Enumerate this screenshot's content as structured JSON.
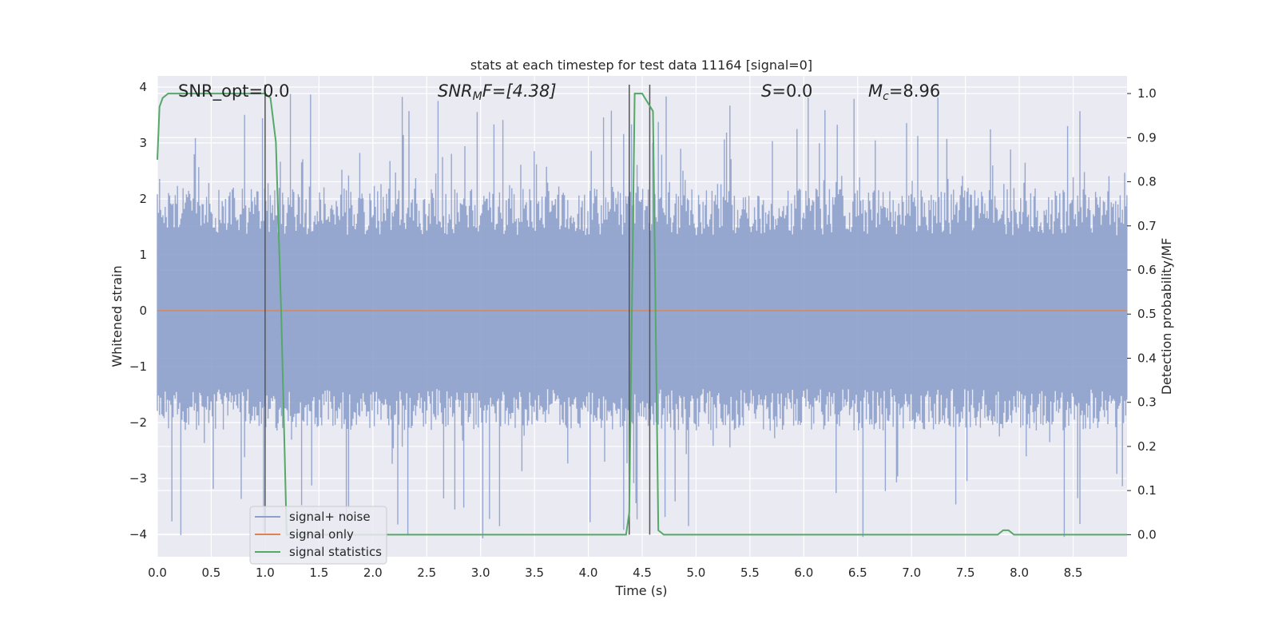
{
  "chart_data": {
    "type": "line",
    "title": "stats at each timestep for test data 11164 [signal=0]",
    "xlabel": "Time (s)",
    "ylabel": "Whitened strain",
    "y2label": "Detection probability/MF",
    "xlim": [
      0.0,
      9.0
    ],
    "ylim": [
      -4.4,
      4.2
    ],
    "y2lim": [
      -0.05,
      1.04
    ],
    "x_ticks": [
      "0.0",
      "0.5",
      "1.0",
      "1.5",
      "2.0",
      "2.5",
      "3.0",
      "3.5",
      "4.0",
      "4.5",
      "5.0",
      "5.5",
      "6.0",
      "6.5",
      "7.0",
      "7.5",
      "8.0",
      "8.5"
    ],
    "y_ticks": [
      "−4",
      "−3",
      "−2",
      "−1",
      "0",
      "1",
      "2",
      "3",
      "4"
    ],
    "y2_ticks": [
      "0.0",
      "0.1",
      "0.2",
      "0.3",
      "0.4",
      "0.5",
      "0.6",
      "0.7",
      "0.8",
      "0.9",
      "1.0"
    ],
    "grid": true,
    "annotations": {
      "snr_opt": "SNR_opt=0.0",
      "snr_mf_pre": "SNR",
      "snr_mf_sub": "M",
      "snr_mf_post": "F=[4.38]",
      "s_var": "S",
      "s_post": "=0.0",
      "mc_var": "M",
      "mc_sub": "c",
      "mc_post": "=8.96"
    },
    "legend": {
      "position": "lower-left",
      "entries": [
        "signal+ noise",
        "signal only",
        "signal statistics"
      ]
    },
    "colors": {
      "noise": "#8da0cb",
      "signal_only": "#dd8452",
      "statistics": "#55a868",
      "marker": "#555555",
      "background": "#eaeaf2"
    },
    "series": [
      {
        "name": "signal+ noise",
        "envelope": "noise band, mostly within [-2, 2.3] with spikes up to about 3.9 and down to about -4.1",
        "spike_upper_max": 3.9,
        "spike_lower_min": -4.1
      },
      {
        "name": "signal only",
        "x": [
          0.0,
          9.0
        ],
        "y": [
          0.0,
          0.0
        ]
      },
      {
        "name": "signal statistics",
        "axis": "right",
        "x": [
          0.0,
          0.02,
          0.05,
          0.1,
          0.15,
          1.0,
          1.05,
          1.1,
          1.15,
          1.2,
          4.1,
          4.3,
          4.35,
          4.38,
          4.43,
          4.5,
          4.6,
          4.65,
          4.7,
          7.8,
          7.85,
          7.9,
          7.95,
          8.0,
          8.5,
          8.9,
          9.0
        ],
        "y": [
          0.85,
          0.97,
          0.99,
          1.0,
          1.0,
          1.0,
          0.99,
          0.89,
          0.5,
          0.0,
          0.0,
          0.0,
          0.0,
          0.05,
          1.0,
          1.0,
          0.96,
          0.01,
          0.0,
          0.0,
          0.01,
          0.01,
          0.0,
          0.0,
          0.0,
          0.0,
          0.0
        ]
      }
    ],
    "markers_x": [
      1.0,
      4.38,
      4.57
    ]
  }
}
